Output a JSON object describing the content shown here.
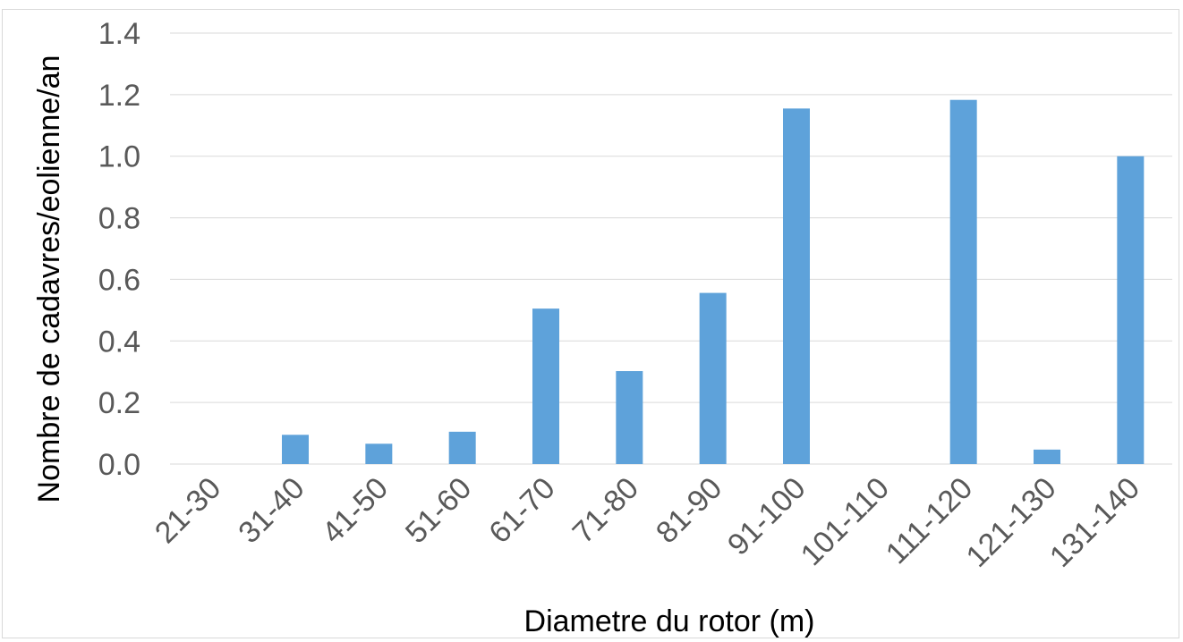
{
  "chart_data": {
    "type": "bar",
    "title": "",
    "xlabel": "Diametre du rotor (m)",
    "ylabel": "Nombre de cadavres/eolienne/an",
    "categories": [
      "21-30",
      "31-40",
      "41-50",
      "51-60",
      "61-70",
      "71-80",
      "81-90",
      "91-100",
      "101-110",
      "111-120",
      "121-130",
      "131-140"
    ],
    "values": [
      0,
      0.095,
      0.066,
      0.105,
      0.505,
      0.302,
      0.556,
      1.155,
      0,
      1.183,
      0.047,
      1.0
    ],
    "ylim": [
      0,
      1.4
    ],
    "yticks": [
      "0.0",
      "0.2",
      "0.4",
      "0.6",
      "0.8",
      "1.0",
      "1.2",
      "1.4"
    ],
    "grid": true,
    "legend": "none",
    "colors": {
      "bar": "#5ea2da",
      "grid": "#d9d9d9",
      "tick_text": "#595959"
    }
  }
}
